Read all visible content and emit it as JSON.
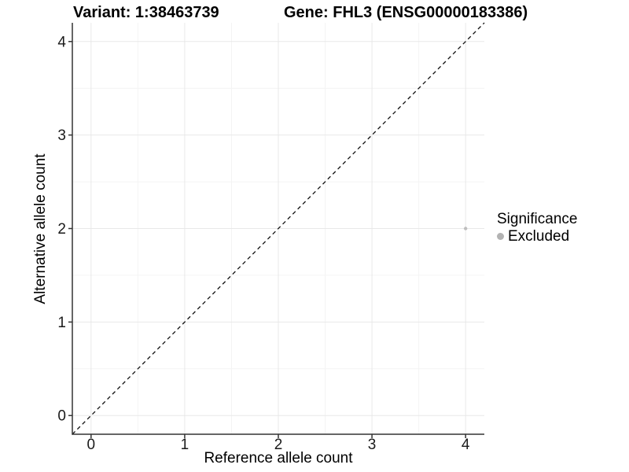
{
  "header": {
    "variant_title": "Variant: 1:38463739",
    "gene_title": "Gene: FHL3 (ENSG00000183386)"
  },
  "chart_data": {
    "type": "scatter",
    "title_left": "Variant: 1:38463739",
    "title_right": "Gene: FHL3 (ENSG00000183386)",
    "xlabel": "Reference allele count",
    "ylabel": "Alternative allele count",
    "xlim": [
      -0.2,
      4.2
    ],
    "ylim": [
      -0.2,
      4.2
    ],
    "x_ticks": [
      0,
      1,
      2,
      3,
      4
    ],
    "y_ticks": [
      0,
      1,
      2,
      3,
      4
    ],
    "x_minor_ticks": [
      0.5,
      1.5,
      2.5,
      3.5
    ],
    "y_minor_ticks": [
      0.5,
      1.5,
      2.5,
      3.5
    ],
    "grid": true,
    "reference_line": {
      "kind": "identity y=x",
      "style": "dashed",
      "color": "#111111"
    },
    "series": [
      {
        "name": "Excluded",
        "color": "#bebebe",
        "points": [
          {
            "x": 4,
            "y": 2
          }
        ]
      }
    ],
    "legend": {
      "title": "Significance",
      "position": "right",
      "items": [
        {
          "label": "Excluded",
          "color": "#b3b3b3"
        }
      ]
    }
  },
  "colors": {
    "background": "#ffffff",
    "axis_line": "#333333",
    "tick_mark": "#333333",
    "tick_label": "#1a1a1a",
    "grid_major": "#e8e8e8",
    "grid_minor": "#f4f4f4",
    "point": "#bebebe",
    "reference_line": "#111111"
  }
}
